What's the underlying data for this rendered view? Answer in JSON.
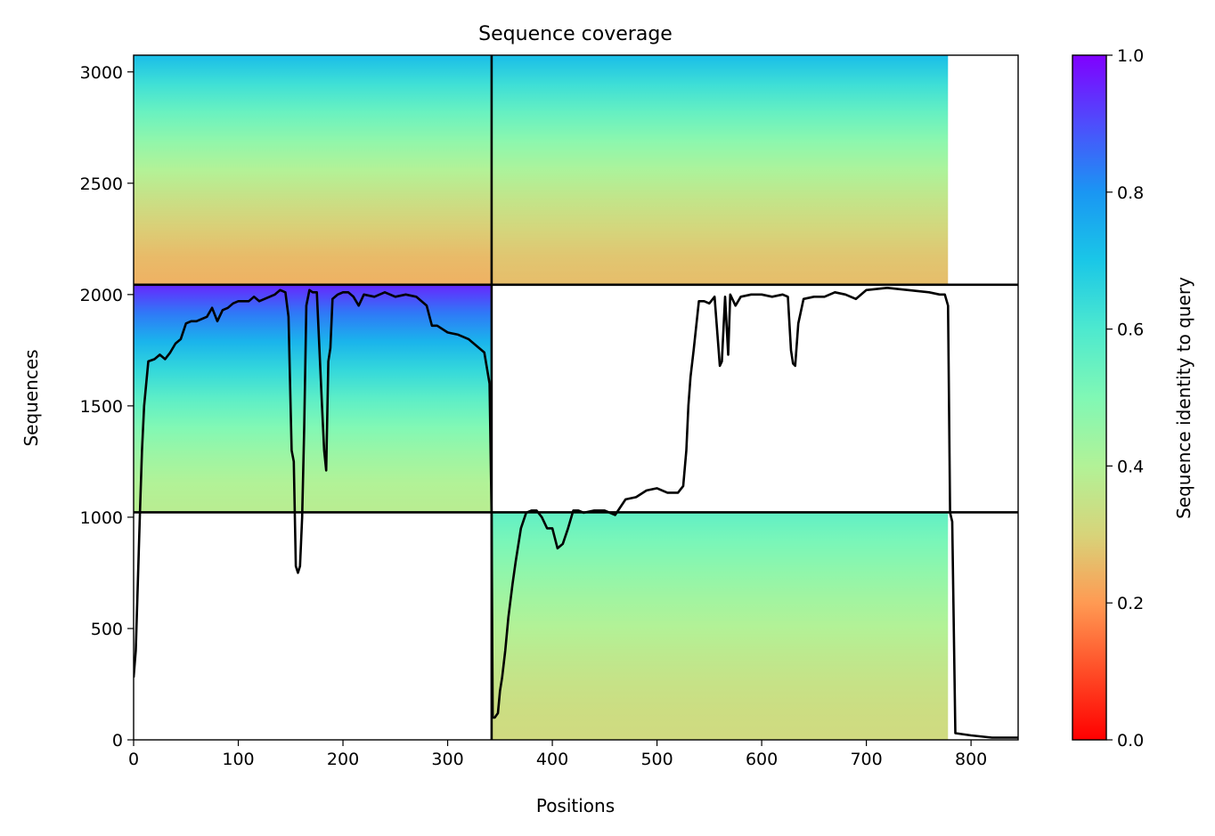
{
  "chart_data": {
    "type": "heatmap",
    "title": "Sequence coverage",
    "xlabel": "Positions",
    "ylabel": "Sequences",
    "xlim": [
      0,
      845
    ],
    "ylim": [
      0,
      3075
    ],
    "xticks": [
      0,
      100,
      200,
      300,
      400,
      500,
      600,
      700,
      800
    ],
    "yticks": [
      0,
      500,
      1000,
      1500,
      2000,
      2500,
      3000
    ],
    "colorbar": {
      "label": "Sequence identity to query",
      "range": [
        0,
        1
      ],
      "ticks": [
        "0.0",
        "0.2",
        "0.4",
        "0.6",
        "0.8",
        "1.0"
      ],
      "colormap": "rainbow_r"
    },
    "block_boundaries": {
      "x": [
        342
      ],
      "y": [
        1022,
        2044
      ]
    },
    "coverage_blocks": [
      {
        "x_range": [
          0,
          342
        ],
        "y_range": [
          1022,
          2044
        ],
        "identity_low": 0.38,
        "identity_high": 0.95
      },
      {
        "x_range": [
          0,
          342
        ],
        "y_range": [
          2044,
          3075
        ],
        "identity_low": 0.24,
        "identity_high": 0.72
      },
      {
        "x_range": [
          342,
          778
        ],
        "y_range": [
          2044,
          3075
        ],
        "identity_low": 0.26,
        "identity_high": 0.72
      },
      {
        "x_range": [
          342,
          778
        ],
        "y_range": [
          0,
          1022
        ],
        "identity_low": 0.32,
        "identity_high": 0.56
      }
    ],
    "coverage_line": {
      "x": [
        0,
        2,
        4,
        6,
        8,
        10,
        14,
        20,
        25,
        30,
        35,
        40,
        45,
        50,
        55,
        60,
        65,
        70,
        75,
        80,
        85,
        90,
        95,
        100,
        110,
        115,
        120,
        125,
        130,
        135,
        140,
        145,
        148,
        151,
        153,
        155,
        157,
        159,
        161,
        163,
        165,
        168,
        171,
        175,
        180,
        182,
        184,
        186,
        188,
        190,
        195,
        200,
        205,
        210,
        215,
        220,
        230,
        240,
        250,
        260,
        270,
        280,
        285,
        290,
        300,
        310,
        320,
        330,
        335,
        340,
        342,
        343,
        345,
        348,
        350,
        352,
        355,
        358,
        362,
        365,
        370,
        375,
        380,
        385,
        390,
        395,
        400,
        405,
        410,
        415,
        420,
        425,
        430,
        440,
        450,
        460,
        470,
        480,
        490,
        500,
        510,
        520,
        525,
        528,
        530,
        532,
        535,
        540,
        545,
        550,
        555,
        560,
        562,
        565,
        568,
        570,
        575,
        580,
        590,
        600,
        610,
        620,
        625,
        628,
        630,
        632,
        635,
        640,
        650,
        660,
        670,
        680,
        690,
        700,
        720,
        740,
        760,
        770,
        775,
        778,
        780,
        782,
        785,
        800,
        820,
        845
      ],
      "y": [
        280,
        400,
        700,
        1020,
        1300,
        1500,
        1700,
        1710,
        1730,
        1710,
        1740,
        1780,
        1800,
        1870,
        1880,
        1880,
        1890,
        1900,
        1940,
        1880,
        1930,
        1940,
        1960,
        1970,
        1970,
        1990,
        1970,
        1980,
        1990,
        2000,
        2020,
        2010,
        1900,
        1300,
        1250,
        780,
        750,
        780,
        1000,
        1400,
        1950,
        2020,
        2010,
        2010,
        1500,
        1300,
        1210,
        1700,
        1760,
        1980,
        2000,
        2010,
        2010,
        1990,
        1950,
        2000,
        1990,
        2010,
        1990,
        2000,
        1990,
        1950,
        1860,
        1860,
        1830,
        1820,
        1800,
        1760,
        1740,
        1600,
        1000,
        100,
        100,
        120,
        220,
        280,
        400,
        550,
        700,
        800,
        950,
        1020,
        1030,
        1030,
        1000,
        950,
        950,
        860,
        880,
        950,
        1030,
        1030,
        1020,
        1030,
        1030,
        1010,
        1080,
        1090,
        1120,
        1130,
        1110,
        1110,
        1140,
        1300,
        1500,
        1630,
        1750,
        1970,
        1970,
        1960,
        1990,
        1680,
        1700,
        1990,
        1730,
        2000,
        1950,
        1990,
        2000,
        2000,
        1990,
        2000,
        1990,
        1750,
        1690,
        1680,
        1870,
        1980,
        1990,
        1990,
        2010,
        2000,
        1980,
        2020,
        2030,
        2020,
        2010,
        2000,
        2000,
        1950,
        1020,
        980,
        30,
        20,
        10,
        10,
        10
      ]
    }
  }
}
